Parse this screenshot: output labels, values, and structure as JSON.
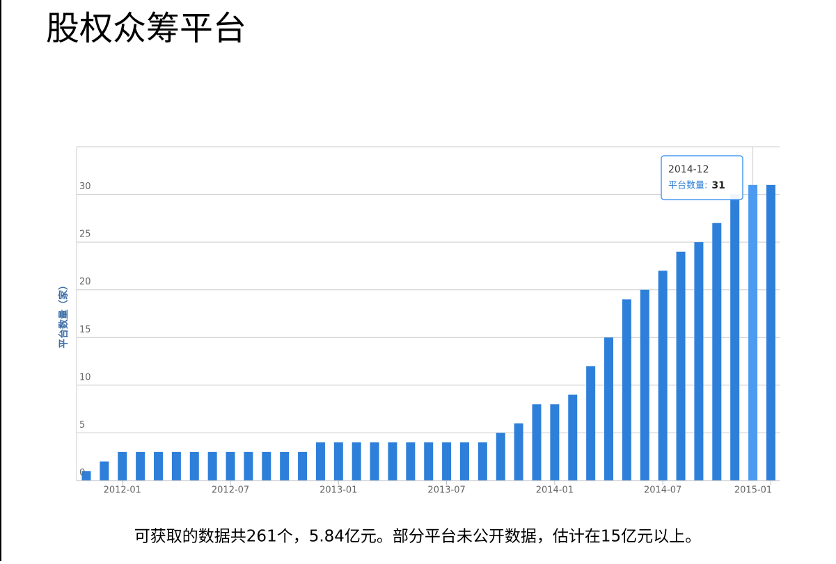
{
  "title": "股权众筹平台",
  "chart_data": {
    "type": "bar",
    "y_label": "平台数量（家）",
    "categories": [
      null,
      null,
      "2012-01",
      null,
      null,
      null,
      null,
      null,
      "2012-07",
      null,
      null,
      null,
      null,
      null,
      "2013-01",
      null,
      null,
      null,
      null,
      null,
      "2013-07",
      null,
      null,
      null,
      null,
      null,
      "2014-01",
      null,
      null,
      null,
      null,
      null,
      "2014-07",
      null,
      null,
      null,
      null,
      null,
      "2015-01"
    ],
    "values": [
      1,
      2,
      3,
      3,
      3,
      3,
      3,
      3,
      3,
      3,
      3,
      3,
      3,
      4,
      4,
      4,
      4,
      4,
      4,
      4,
      4,
      4,
      4,
      5,
      6,
      8,
      8,
      9,
      12,
      15,
      19,
      20,
      22,
      24,
      25,
      27,
      30,
      31,
      31
    ],
    "color": "#2e7fd9",
    "highlight_color": "#4b9bf2",
    "ylim": [
      0,
      35
    ],
    "yticks": [
      0,
      5,
      10,
      15,
      20,
      25,
      30
    ],
    "grid": true,
    "tooltip": {
      "category": "2014-12",
      "label": "平台数量:",
      "value": 31,
      "index": 37
    }
  },
  "caption": "可获取的数据共261个，5.84亿元。部分平台未公开数据，估计在15亿元以上。"
}
